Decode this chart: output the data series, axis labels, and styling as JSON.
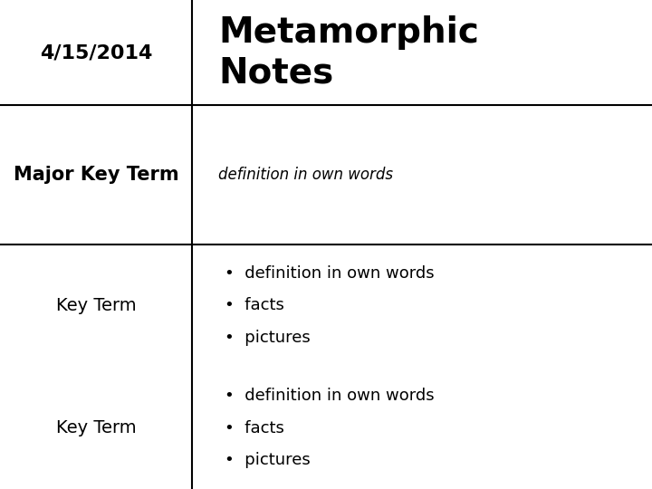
{
  "background_color": "#ffffff",
  "date_text": "4/15/2014",
  "title_text": "Metamorphic\nNotes",
  "major_key_term_label": "Major Key Term",
  "major_key_term_def": "definition in own words",
  "key_term_label": "Key Term",
  "bullet_items": [
    "definition in own words",
    "facts",
    "pictures"
  ],
  "col_split": 0.295,
  "row1_split": 0.215,
  "row2_split": 0.5,
  "line_color": "#000000",
  "date_fontsize": 16,
  "title_fontsize": 28,
  "major_label_fontsize": 15,
  "major_def_fontsize": 12,
  "key_term_fontsize": 14,
  "bullet_fontsize": 13
}
